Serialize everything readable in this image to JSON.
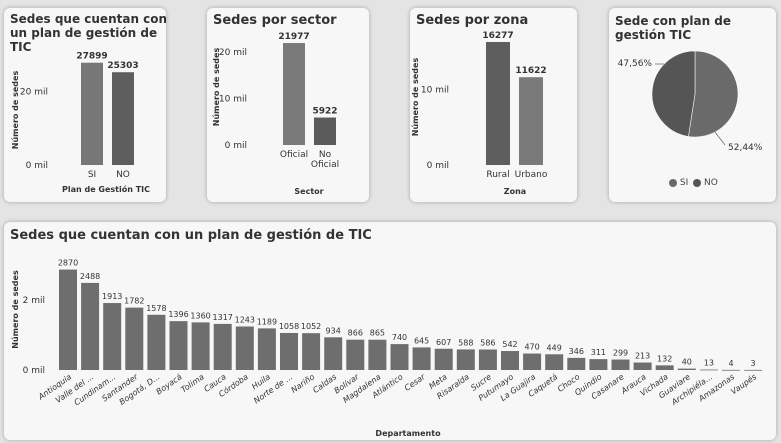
{
  "charts": {
    "plan": {
      "title": "Sedes que cuentan con un plan de gestión de TIC",
      "ylabel": "Número de sedes",
      "xlabel": "Plan de Gestión TIC",
      "yticks": [
        "20 mil",
        "0 mil"
      ]
    },
    "sector": {
      "title": "Sedes por sector",
      "ylabel": "Número de sedes",
      "xlabel": "Sector",
      "yticks": [
        "20 mil",
        "10 mil",
        "0 mil"
      ]
    },
    "zona": {
      "title": "Sedes por zona",
      "ylabel": "Número de sedes",
      "xlabel": "Zona",
      "yticks": [
        "10 mil",
        "0 mil"
      ]
    },
    "pie": {
      "title": "Sede con plan de gestión TIC",
      "legend": [
        "SI",
        "NO"
      ]
    },
    "dept": {
      "title": "Sedes que cuentan con un plan de gestión de TIC",
      "ylabel": "Número de sedes",
      "xlabel": "Departamento",
      "yticks": [
        "2 mil",
        "0 mil"
      ]
    }
  },
  "chart_data": [
    {
      "type": "bar",
      "title": "Sedes que cuentan con un plan de gestión de TIC",
      "xlabel": "Plan de Gestión TIC",
      "ylabel": "Número de sedes",
      "categories": [
        "SI",
        "NO"
      ],
      "values": [
        27899,
        25303
      ],
      "data_labels": [
        "27899",
        "25303"
      ],
      "ylim": [
        0,
        30000
      ],
      "grid": false
    },
    {
      "type": "bar",
      "title": "Sedes por sector",
      "xlabel": "Sector",
      "ylabel": "Número de sedes",
      "categories": [
        "Oficial",
        "No Oficial"
      ],
      "values": [
        21977,
        5922
      ],
      "data_labels": [
        "21977",
        "5922"
      ],
      "ylim": [
        0,
        25000
      ],
      "grid": false
    },
    {
      "type": "bar",
      "title": "Sedes por zona",
      "xlabel": "Zona",
      "ylabel": "Número de sedes",
      "categories": [
        "Rural",
        "Urbano"
      ],
      "values": [
        16277,
        11622
      ],
      "data_labels": [
        "16277",
        "11622"
      ],
      "ylim": [
        0,
        18000
      ],
      "grid": false
    },
    {
      "type": "pie",
      "title": "Sede con plan de gestión TIC",
      "categories": [
        "SI",
        "NO"
      ],
      "values": [
        52.44,
        47.56
      ],
      "data_labels": [
        "52,44%",
        "47,56%"
      ],
      "legend_position": "bottom"
    },
    {
      "type": "bar",
      "title": "Sedes que cuentan con un plan de gestión de TIC",
      "xlabel": "Departamento",
      "ylabel": "Número de sedes",
      "categories": [
        "Antioquia",
        "Valle del ...",
        "Cundinam...",
        "Santander",
        "Bogotá, D...",
        "Boyacá",
        "Tolima",
        "Cauca",
        "Córdoba",
        "Huila",
        "Norte de ...",
        "Nariño",
        "Caldas",
        "Bolívar",
        "Magdalena",
        "Atlántico",
        "Cesar",
        "Meta",
        "Risaralda",
        "Sucre",
        "Putumayo",
        "La Guajira",
        "Caquetá",
        "Choco",
        "Quindio",
        "Casanare",
        "Arauca",
        "Vichada",
        "Guaviare",
        "Archipiéla...",
        "Amazonas",
        "Vaupés"
      ],
      "values": [
        2870,
        2488,
        1913,
        1782,
        1578,
        1396,
        1360,
        1317,
        1243,
        1189,
        1058,
        1052,
        934,
        866,
        865,
        740,
        645,
        607,
        588,
        586,
        542,
        470,
        449,
        346,
        311,
        299,
        213,
        132,
        40,
        13,
        4,
        3
      ],
      "data_labels": [
        "2870",
        "2488",
        "1913",
        "1782",
        "1578",
        "1396",
        "1360",
        "1317",
        "1243",
        "1189",
        "1058",
        "1052",
        "934",
        "866",
        "865",
        "740",
        "645",
        "607",
        "588",
        "586",
        "542",
        "470",
        "449",
        "346",
        "311",
        "299",
        "213",
        "132",
        "40",
        "13",
        "4",
        "3"
      ],
      "ylim": [
        0,
        3000
      ],
      "grid": false
    }
  ]
}
